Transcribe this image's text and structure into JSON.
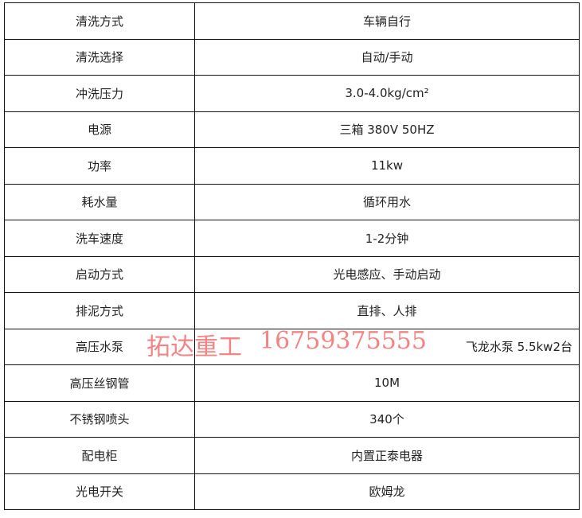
{
  "rows": [
    {
      "label": "清洗方式",
      "value": "车辆自行"
    },
    {
      "label": "清洗选择",
      "value": "自动/手动"
    },
    {
      "label": "冲洗压力",
      "value": "3.0-4.0kg/cm²"
    },
    {
      "label": "电源",
      "value": "三箱 380V 50HZ"
    },
    {
      "label": "功率",
      "value": "11kw"
    },
    {
      "label": "耗水量",
      "value": "循环用水"
    },
    {
      "label": "洗车速度",
      "value": "1-2分钟"
    },
    {
      "label": "启动方式",
      "value": "光电感应、手动启动"
    },
    {
      "label": "排泥方式",
      "value": "直排、人排"
    },
    {
      "label": "高压水泵",
      "value": "飞龙水泵 5.5kw2台"
    },
    {
      "label": "高压丝钢管",
      "value": "10M"
    },
    {
      "label": "不锈钢喷头",
      "value": "340个"
    },
    {
      "label": "配电柜",
      "value": "内置正泰电器"
    },
    {
      "label": "光电开关",
      "value": "欧姆龙"
    }
  ],
  "watermark": {
    "company": "拓达重工",
    "phone": "16759375555",
    "color": "#f05a5a"
  }
}
